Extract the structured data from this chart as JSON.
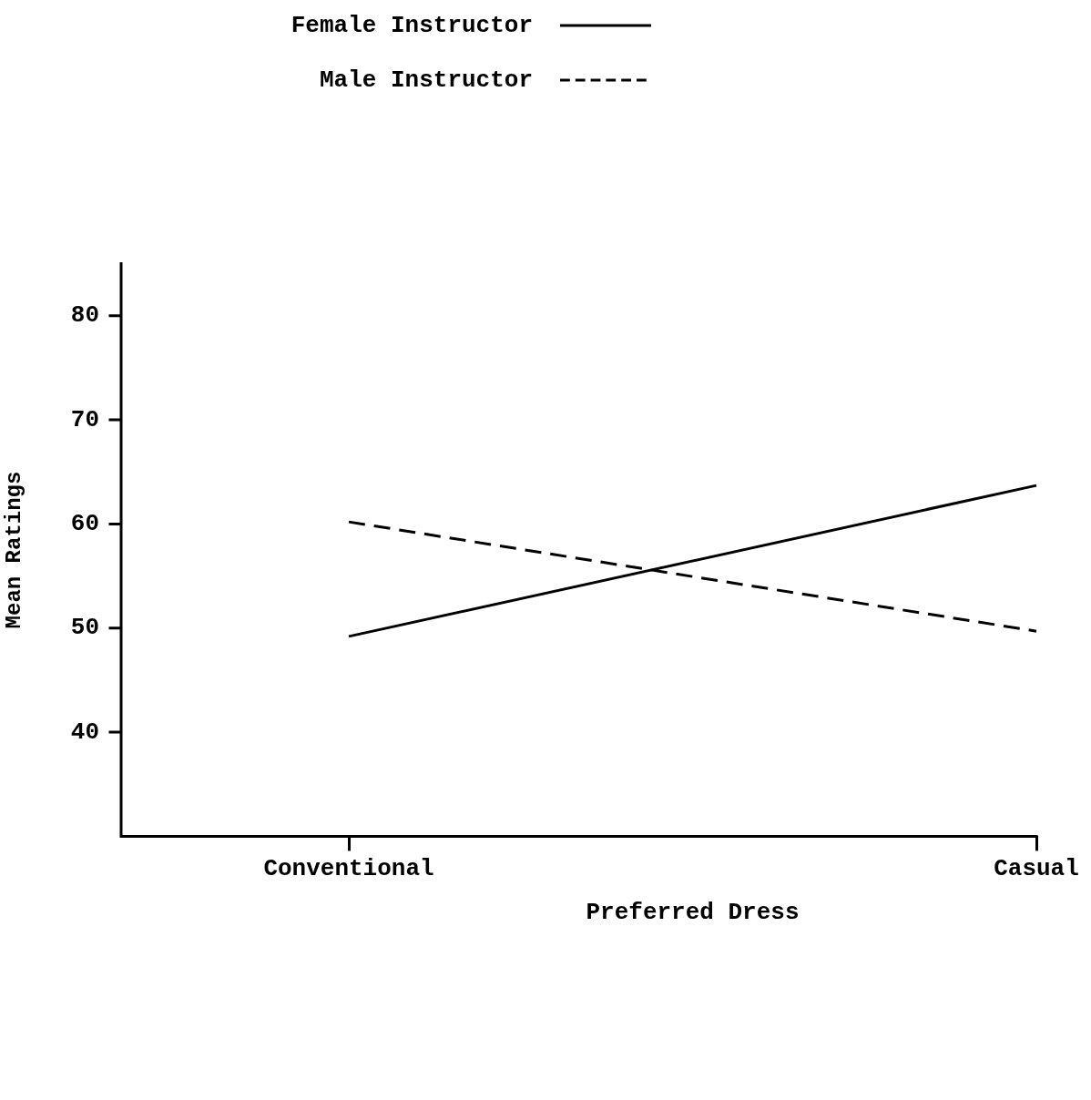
{
  "chart_data": {
    "type": "line",
    "xlabel": "Preferred Dress",
    "ylabel": "Mean Ratings",
    "categories": [
      "Conventional",
      "Casual"
    ],
    "series": [
      {
        "name": "Female Instructor",
        "color": "#000000",
        "line_style": "solid",
        "values": [
          49.2,
          63.7
        ]
      },
      {
        "name": "Male Instructor",
        "color": "#000000",
        "line_style": "dashed",
        "values": [
          60.2,
          49.7
        ]
      }
    ],
    "ylim": [
      30,
      85
    ],
    "yticks": [
      40,
      50,
      60,
      70,
      80
    ],
    "grid": false,
    "legend": "top",
    "marker": "none"
  }
}
